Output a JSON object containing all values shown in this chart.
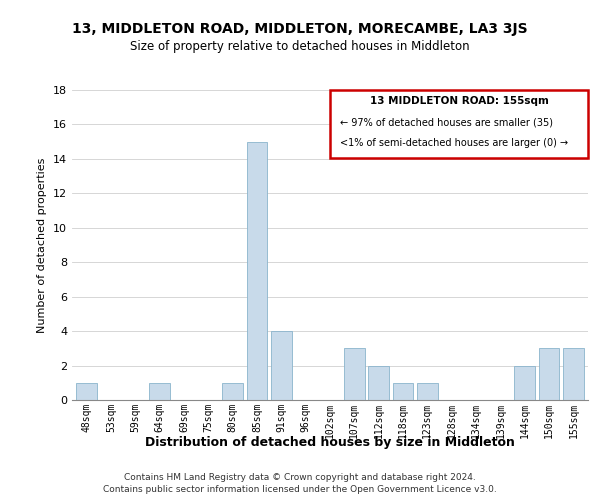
{
  "title": "13, MIDDLETON ROAD, MIDDLETON, MORECAMBE, LA3 3JS",
  "subtitle": "Size of property relative to detached houses in Middleton",
  "xlabel": "Distribution of detached houses by size in Middleton",
  "ylabel": "Number of detached properties",
  "bar_color": "#c8daea",
  "bar_edgecolor": "#8ab4cc",
  "categories": [
    "48sqm",
    "53sqm",
    "59sqm",
    "64sqm",
    "69sqm",
    "75sqm",
    "80sqm",
    "85sqm",
    "91sqm",
    "96sqm",
    "102sqm",
    "107sqm",
    "112sqm",
    "118sqm",
    "123sqm",
    "128sqm",
    "134sqm",
    "139sqm",
    "144sqm",
    "150sqm",
    "155sqm"
  ],
  "values": [
    1,
    0,
    0,
    1,
    0,
    0,
    1,
    15,
    4,
    0,
    0,
    3,
    2,
    1,
    1,
    0,
    0,
    0,
    2,
    3,
    3
  ],
  "ylim": [
    0,
    18
  ],
  "yticks": [
    0,
    2,
    4,
    6,
    8,
    10,
    12,
    14,
    16,
    18
  ],
  "annotation_box_title": "13 MIDDLETON ROAD: 155sqm",
  "annotation_line1": "← 97% of detached houses are smaller (35)",
  "annotation_line2": "<1% of semi-detached houses are larger (0) →",
  "annotation_box_edgecolor": "#cc0000",
  "footer1": "Contains HM Land Registry data © Crown copyright and database right 2024.",
  "footer2": "Contains public sector information licensed under the Open Government Licence v3.0."
}
